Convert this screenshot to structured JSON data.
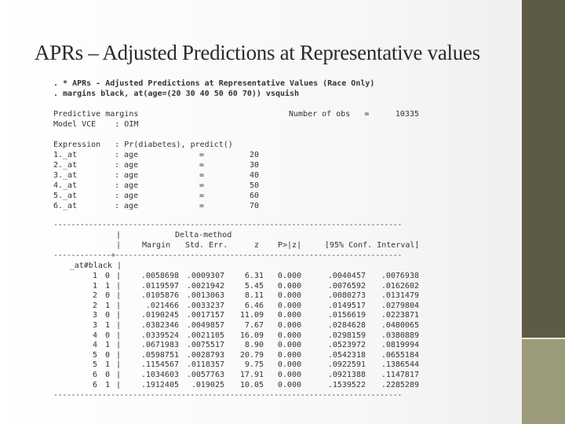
{
  "slide": {
    "title": "APRs – Adjusted Predictions at Representative values"
  },
  "output": {
    "commands": [
      ". * APRs - Adjusted Predictions at Representative Values (Race Only)",
      ". margins black, at(age=(20 30 40 50 60 70)) vsquish"
    ],
    "header": {
      "title": "Predictive margins",
      "nobs_label": "Number of obs   =",
      "nobs_value": "10335",
      "model_vce": "Model VCE    : OIM",
      "expression": "Expression   : Pr(diabetes), predict()"
    },
    "at_rows": [
      {
        "label": "1._at",
        "var": ": age",
        "eq": "=",
        "val": "20"
      },
      {
        "label": "2._at",
        "var": ": age",
        "eq": "=",
        "val": "30"
      },
      {
        "label": "3._at",
        "var": ": age",
        "eq": "=",
        "val": "40"
      },
      {
        "label": "4._at",
        "var": ": age",
        "eq": "=",
        "val": "50"
      },
      {
        "label": "5._at",
        "var": ": age",
        "eq": "=",
        "val": "60"
      },
      {
        "label": "6._at",
        "var": ": age",
        "eq": "=",
        "val": "70"
      }
    ],
    "table": {
      "rule": "-------------------------------------------------------------------------------",
      "delta_method": "Delta-method",
      "headers": [
        "Margin",
        "Std. Err.",
        "z",
        "P>|z|",
        "[95% Conf. Interval]"
      ],
      "col_divider": "|",
      "cross_rule": "-------------+-----------------------------------------------------------------",
      "group_label": "_at#black |",
      "rows": [
        {
          "at": "1",
          "black": "0",
          "margin": ".0058698",
          "se": ".0009307",
          "z": "6.31",
          "p": "0.000",
          "lo": ".0040457",
          "hi": ".0076938"
        },
        {
          "at": "1",
          "black": "1",
          "margin": ".0119597",
          "se": ".0021942",
          "z": "5.45",
          "p": "0.000",
          "lo": ".0076592",
          "hi": ".0162602"
        },
        {
          "at": "2",
          "black": "0",
          "margin": ".0105876",
          "se": ".0013063",
          "z": "8.11",
          "p": "0.000",
          "lo": ".0080273",
          "hi": ".0131479"
        },
        {
          "at": "2",
          "black": "1",
          "margin": ".021466",
          "se": ".0033237",
          "z": "6.46",
          "p": "0.000",
          "lo": ".0149517",
          "hi": ".0279804"
        },
        {
          "at": "3",
          "black": "0",
          "margin": ".0190245",
          "se": ".0017157",
          "z": "11.09",
          "p": "0.000",
          "lo": ".0156619",
          "hi": ".0223871"
        },
        {
          "at": "3",
          "black": "1",
          "margin": ".0382346",
          "se": ".0049857",
          "z": "7.67",
          "p": "0.000",
          "lo": ".0284628",
          "hi": ".0480065"
        },
        {
          "at": "4",
          "black": "0",
          "margin": ".0339524",
          "se": ".0021105",
          "z": "16.09",
          "p": "0.000",
          "lo": ".0298159",
          "hi": ".0380889"
        },
        {
          "at": "4",
          "black": "1",
          "margin": ".0671983",
          "se": ".0075517",
          "z": "8.90",
          "p": "0.000",
          "lo": ".0523972",
          "hi": ".0819994"
        },
        {
          "at": "5",
          "black": "0",
          "margin": ".0598751",
          "se": ".0028793",
          "z": "20.79",
          "p": "0.000",
          "lo": ".0542318",
          "hi": ".0655184"
        },
        {
          "at": "5",
          "black": "1",
          "margin": ".1154567",
          "se": ".0118357",
          "z": "9.75",
          "p": "0.000",
          "lo": ".0922591",
          "hi": ".1386544"
        },
        {
          "at": "6",
          "black": "0",
          "margin": ".1034603",
          "se": ".0057763",
          "z": "17.91",
          "p": "0.000",
          "lo": ".0921388",
          "hi": ".1147817"
        },
        {
          "at": "6",
          "black": "1",
          "margin": ".1912405",
          "se": ".019025",
          "z": "10.05",
          "p": "0.000",
          "lo": ".1539522",
          "hi": ".2285289"
        }
      ]
    }
  }
}
